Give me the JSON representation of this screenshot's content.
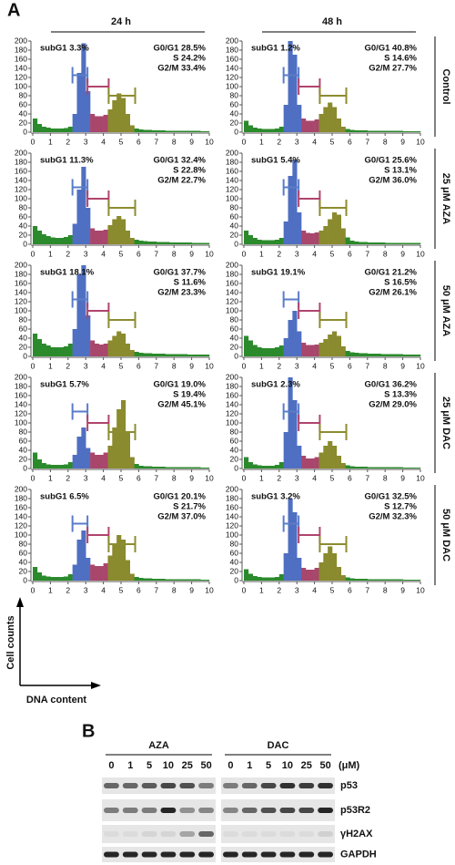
{
  "panel_a": {
    "label": "A",
    "columns": [
      "24 h",
      "48 h"
    ],
    "rows": [
      "Control",
      "25 μM AZA",
      "50 μM AZA",
      "25 μM DAC",
      "50 μM DAC"
    ],
    "y_axis_label": "Cell counts",
    "x_axis_label": "DNA content",
    "xlim": [
      0,
      10
    ],
    "ylim": [
      0,
      200
    ],
    "xticks": [
      0,
      1,
      2,
      3,
      4,
      5,
      6,
      7,
      8,
      9,
      10
    ],
    "yticks": [
      0,
      20,
      40,
      60,
      80,
      100,
      120,
      140,
      160,
      180,
      200
    ],
    "bins": [
      0,
      0.25,
      0.5,
      0.75,
      1,
      1.25,
      1.5,
      1.75,
      2,
      2.25,
      2.5,
      2.75,
      3,
      3.25,
      3.5,
      3.75,
      4,
      4.25,
      4.5,
      4.75,
      5,
      5.25,
      5.5,
      5.75,
      6,
      6.25,
      6.5,
      6.75,
      7,
      7.25,
      7.5,
      7.75,
      8,
      8.25,
      8.5,
      8.75,
      9,
      9.25,
      9.5,
      9.75,
      10
    ],
    "background_color": "#2b8a2b",
    "regions": [
      {
        "x": [
          2.25,
          3.25
        ],
        "color": "#4f6fc2"
      },
      {
        "x": [
          3.25,
          4.25
        ],
        "color": "#a8466c"
      },
      {
        "x": [
          4.25,
          5.75
        ],
        "color": "#8a8a2e"
      }
    ],
    "gates": [
      {
        "x": [
          2.25,
          3.1
        ],
        "y": 125,
        "color": "#5a7cc8"
      },
      {
        "x": [
          3.1,
          4.3
        ],
        "y": 100,
        "color": "#b0446e"
      },
      {
        "x": [
          4.3,
          5.8
        ],
        "y": 80,
        "color": "#8c8c30"
      }
    ],
    "histograms": [
      [
        {
          "subg1": "subG1 3.3%",
          "g0g1": "G0/G1 28.5%",
          "s": "S 24.2%",
          "g2m": "G2/M 33.4%",
          "counts": [
            30,
            18,
            12,
            10,
            8,
            8,
            8,
            9,
            12,
            40,
            130,
            195,
            90,
            40,
            35,
            35,
            38,
            50,
            70,
            85,
            75,
            40,
            15,
            8,
            6,
            5,
            5,
            4,
            4,
            4,
            3,
            3,
            3,
            3,
            3,
            3,
            3,
            3,
            2,
            2
          ]
        },
        {
          "subg1": "subG1 1.2%",
          "g0g1": "G0/G1 40.8%",
          "s": "S 14.6%",
          "g2m": "G2/M 27.7%",
          "counts": [
            25,
            15,
            10,
            8,
            7,
            7,
            7,
            8,
            12,
            60,
            200,
            170,
            60,
            30,
            25,
            25,
            28,
            40,
            55,
            65,
            55,
            30,
            12,
            7,
            5,
            4,
            4,
            4,
            3,
            3,
            3,
            3,
            3,
            3,
            3,
            3,
            2,
            2,
            2,
            2
          ]
        }
      ],
      [
        {
          "subg1": "subG1 11.3%",
          "g0g1": "G0/G1 32.4%",
          "s": "S 22.8%",
          "g2m": "G2/M 22.7%",
          "counts": [
            40,
            30,
            22,
            18,
            15,
            14,
            14,
            16,
            20,
            45,
            120,
            170,
            80,
            35,
            30,
            30,
            32,
            42,
            55,
            62,
            55,
            30,
            14,
            10,
            8,
            7,
            6,
            6,
            5,
            5,
            5,
            4,
            4,
            4,
            4,
            4,
            3,
            3,
            3,
            3
          ]
        },
        {
          "subg1": "subG1 5.4%",
          "g0g1": "G0/G1 25.6%",
          "s": "S 13.1%",
          "g2m": "G2/M 36.0%",
          "counts": [
            30,
            20,
            14,
            10,
            9,
            9,
            9,
            10,
            14,
            50,
            150,
            185,
            70,
            30,
            25,
            24,
            26,
            30,
            40,
            55,
            70,
            65,
            35,
            15,
            8,
            6,
            5,
            5,
            4,
            4,
            4,
            4,
            3,
            3,
            3,
            3,
            3,
            3,
            3,
            3
          ]
        }
      ],
      [
        {
          "subg1": "subG1 18.1%",
          "g0g1": "G0/G1 37.7%",
          "s": "S 11.6%",
          "g2m": "G2/M 23.3%",
          "counts": [
            50,
            38,
            28,
            24,
            20,
            20,
            20,
            22,
            28,
            60,
            180,
            200,
            90,
            35,
            28,
            26,
            28,
            35,
            45,
            55,
            50,
            28,
            14,
            10,
            8,
            7,
            7,
            6,
            6,
            6,
            5,
            5,
            5,
            5,
            5,
            4,
            4,
            4,
            4,
            4
          ]
        },
        {
          "subg1": "subG1 19.1%",
          "g0g1": "G0/G1 21.2%",
          "s": "S 16.5%",
          "g2m": "G2/M 26.1%",
          "counts": [
            45,
            35,
            25,
            20,
            18,
            18,
            18,
            20,
            24,
            40,
            80,
            100,
            55,
            30,
            25,
            25,
            26,
            30,
            38,
            48,
            55,
            45,
            22,
            12,
            9,
            8,
            7,
            7,
            6,
            6,
            6,
            5,
            5,
            5,
            5,
            5,
            4,
            4,
            4,
            4
          ]
        }
      ],
      [
        {
          "subg1": "subG1 5.7%",
          "g0g1": "G0/G1 19.0%",
          "s": "S 19.4%",
          "g2m": "G2/M 45.1%",
          "counts": [
            35,
            20,
            12,
            9,
            8,
            8,
            8,
            9,
            14,
            30,
            70,
            90,
            45,
            35,
            30,
            30,
            35,
            50,
            90,
            130,
            150,
            80,
            25,
            10,
            6,
            5,
            5,
            4,
            4,
            4,
            3,
            3,
            3,
            3,
            3,
            3,
            3,
            3,
            2,
            2
          ]
        },
        {
          "subg1": "subG1 2.3%",
          "g0g1": "G0/G1 36.2%",
          "s": "S 13.3%",
          "g2m": "G2/M 29.0%",
          "counts": [
            25,
            14,
            9,
            7,
            6,
            6,
            6,
            8,
            14,
            80,
            200,
            150,
            50,
            28,
            22,
            22,
            25,
            35,
            50,
            60,
            50,
            28,
            12,
            7,
            5,
            4,
            4,
            4,
            3,
            3,
            3,
            3,
            3,
            3,
            3,
            3,
            2,
            2,
            2,
            2
          ]
        }
      ],
      [
        {
          "subg1": "subG1 6.5%",
          "g0g1": "G0/G1 20.1%",
          "s": "S 21.7%",
          "g2m": "G2/M 37.0%",
          "counts": [
            30,
            18,
            11,
            9,
            8,
            8,
            8,
            9,
            14,
            35,
            90,
            110,
            50,
            35,
            32,
            32,
            38,
            55,
            80,
            100,
            90,
            45,
            15,
            8,
            6,
            5,
            5,
            4,
            4,
            4,
            3,
            3,
            3,
            3,
            3,
            3,
            3,
            3,
            2,
            2
          ]
        },
        {
          "subg1": "subG1 3.2%",
          "g0g1": "G0/G1 32.5%",
          "s": "S 12.7%",
          "g2m": "G2/M 32.3%",
          "counts": [
            25,
            15,
            10,
            8,
            7,
            7,
            7,
            8,
            14,
            60,
            180,
            150,
            50,
            28,
            24,
            24,
            28,
            40,
            60,
            75,
            60,
            30,
            12,
            7,
            5,
            4,
            4,
            4,
            3,
            3,
            3,
            3,
            3,
            3,
            3,
            3,
            2,
            2,
            2,
            2
          ]
        }
      ]
    ]
  },
  "panel_b": {
    "label": "B",
    "doses": [
      "0",
      "1",
      "5",
      "10",
      "25",
      "50"
    ],
    "unit": "(μM)",
    "proteins": [
      "p53",
      "p53R2",
      "γH2AX",
      "GAPDH"
    ],
    "groups": [
      {
        "name": "AZA",
        "bands": [
          [
            0.6,
            0.6,
            0.65,
            0.75,
            0.7,
            0.5
          ],
          [
            0.5,
            0.5,
            0.5,
            0.9,
            0.4,
            0.45
          ],
          [
            0.05,
            0.05,
            0.08,
            0.08,
            0.3,
            0.6
          ],
          [
            0.9,
            0.9,
            0.9,
            0.9,
            0.9,
            0.9
          ]
        ]
      },
      {
        "name": "DAC",
        "bands": [
          [
            0.5,
            0.6,
            0.75,
            0.85,
            0.8,
            0.85
          ],
          [
            0.45,
            0.6,
            0.7,
            0.75,
            0.75,
            0.9
          ],
          [
            0.05,
            0.05,
            0.05,
            0.05,
            0.05,
            0.1
          ],
          [
            0.9,
            0.9,
            0.9,
            0.9,
            0.9,
            0.9
          ]
        ]
      }
    ]
  }
}
